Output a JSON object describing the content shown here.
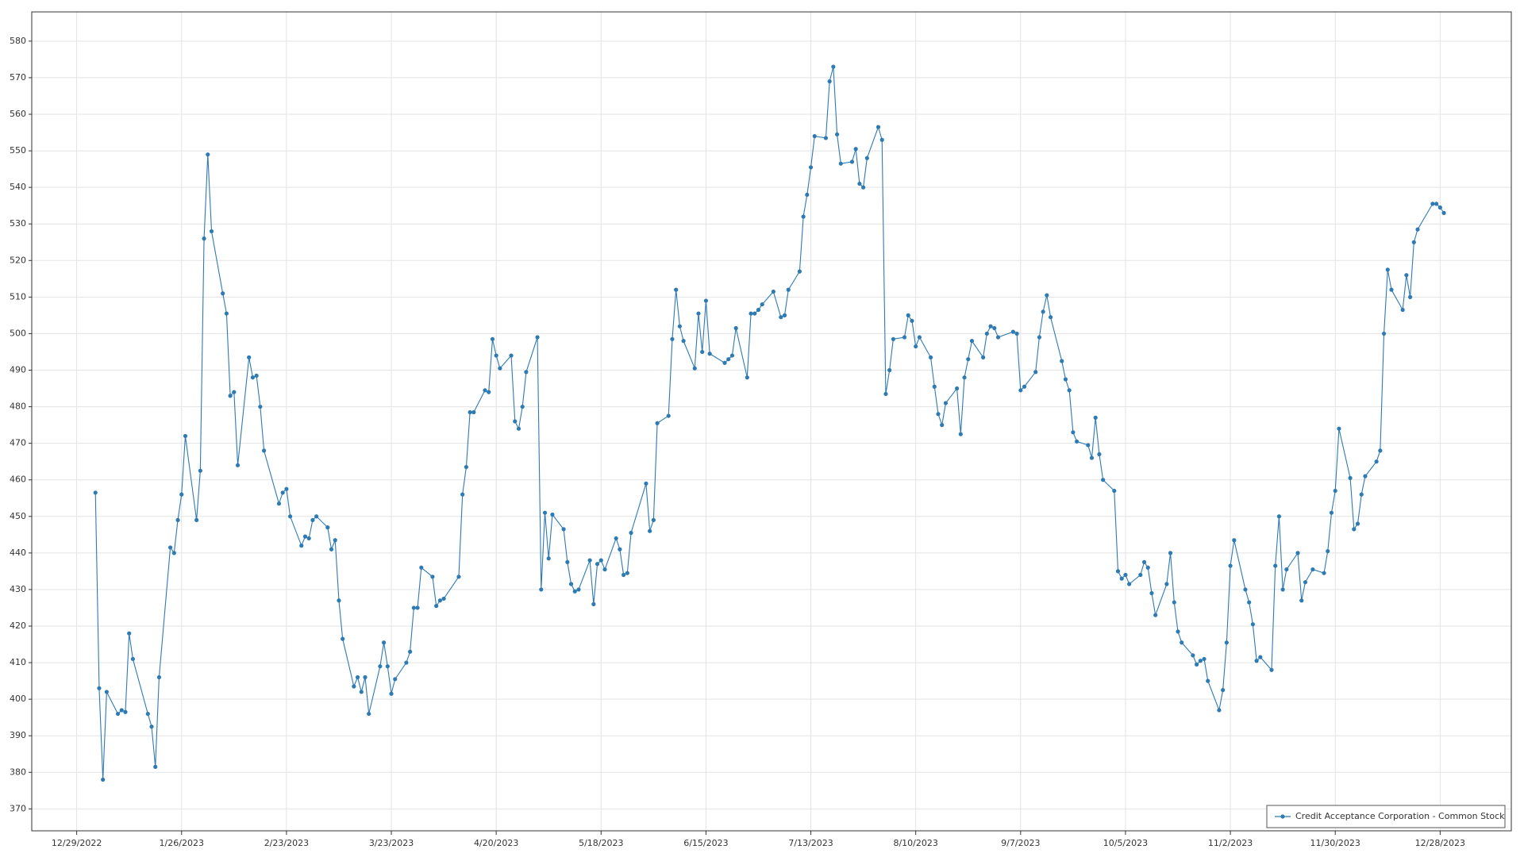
{
  "chart_data": {
    "type": "line",
    "x": [
      "1/3/2023",
      "1/4/2023",
      "1/5/2023",
      "1/6/2023",
      "1/9/2023",
      "1/10/2023",
      "1/11/2023",
      "1/12/2023",
      "1/13/2023",
      "1/17/2023",
      "1/18/2023",
      "1/19/2023",
      "1/20/2023",
      "1/23/2023",
      "1/24/2023",
      "1/25/2023",
      "1/26/2023",
      "1/27/2023",
      "1/30/2023",
      "1/31/2023",
      "2/1/2023",
      "2/2/2023",
      "2/3/2023",
      "2/6/2023",
      "2/7/2023",
      "2/8/2023",
      "2/9/2023",
      "2/10/2023",
      "2/13/2023",
      "2/14/2023",
      "2/15/2023",
      "2/16/2023",
      "2/17/2023",
      "2/21/2023",
      "2/22/2023",
      "2/23/2023",
      "2/24/2023",
      "2/27/2023",
      "2/28/2023",
      "3/1/2023",
      "3/2/2023",
      "3/3/2023",
      "3/6/2023",
      "3/7/2023",
      "3/8/2023",
      "3/9/2023",
      "3/10/2023",
      "3/13/2023",
      "3/14/2023",
      "3/15/2023",
      "3/16/2023",
      "3/17/2023",
      "3/20/2023",
      "3/21/2023",
      "3/22/2023",
      "3/23/2023",
      "3/24/2023",
      "3/27/2023",
      "3/28/2023",
      "3/29/2023",
      "3/30/2023",
      "3/31/2023",
      "4/3/2023",
      "4/4/2023",
      "4/5/2023",
      "4/6/2023",
      "4/10/2023",
      "4/11/2023",
      "4/12/2023",
      "4/13/2023",
      "4/14/2023",
      "4/17/2023",
      "4/18/2023",
      "4/19/2023",
      "4/20/2023",
      "4/21/2023",
      "4/24/2023",
      "4/25/2023",
      "4/26/2023",
      "4/27/2023",
      "4/28/2023",
      "5/1/2023",
      "5/2/2023",
      "5/3/2023",
      "5/4/2023",
      "5/5/2023",
      "5/8/2023",
      "5/9/2023",
      "5/10/2023",
      "5/11/2023",
      "5/12/2023",
      "5/15/2023",
      "5/16/2023",
      "5/17/2023",
      "5/18/2023",
      "5/19/2023",
      "5/22/2023",
      "5/23/2023",
      "5/24/2023",
      "5/25/2023",
      "5/26/2023",
      "5/30/2023",
      "5/31/2023",
      "6/1/2023",
      "6/2/2023",
      "6/5/2023",
      "6/6/2023",
      "6/7/2023",
      "6/8/2023",
      "6/9/2023",
      "6/12/2023",
      "6/13/2023",
      "6/14/2023",
      "6/15/2023",
      "6/16/2023",
      "6/20/2023",
      "6/21/2023",
      "6/22/2023",
      "6/23/2023",
      "6/26/2023",
      "6/27/2023",
      "6/28/2023",
      "6/29/2023",
      "6/30/2023",
      "7/3/2023",
      "7/5/2023",
      "7/6/2023",
      "7/7/2023",
      "7/10/2023",
      "7/11/2023",
      "7/12/2023",
      "7/13/2023",
      "7/14/2023",
      "7/17/2023",
      "7/18/2023",
      "7/19/2023",
      "7/20/2023",
      "7/21/2023",
      "7/24/2023",
      "7/25/2023",
      "7/26/2023",
      "7/27/2023",
      "7/28/2023",
      "7/31/2023",
      "8/1/2023",
      "8/2/2023",
      "8/3/2023",
      "8/4/2023",
      "8/7/2023",
      "8/8/2023",
      "8/9/2023",
      "8/10/2023",
      "8/11/2023",
      "8/14/2023",
      "8/15/2023",
      "8/16/2023",
      "8/17/2023",
      "8/18/2023",
      "8/21/2023",
      "8/22/2023",
      "8/23/2023",
      "8/24/2023",
      "8/25/2023",
      "8/28/2023",
      "8/29/2023",
      "8/30/2023",
      "8/31/2023",
      "9/1/2023",
      "9/5/2023",
      "9/6/2023",
      "9/7/2023",
      "9/8/2023",
      "9/11/2023",
      "9/12/2023",
      "9/13/2023",
      "9/14/2023",
      "9/15/2023",
      "9/18/2023",
      "9/19/2023",
      "9/20/2023",
      "9/21/2023",
      "9/22/2023",
      "9/25/2023",
      "9/26/2023",
      "9/27/2023",
      "9/28/2023",
      "9/29/2023",
      "10/2/2023",
      "10/3/2023",
      "10/4/2023",
      "10/5/2023",
      "10/6/2023",
      "10/9/2023",
      "10/10/2023",
      "10/11/2023",
      "10/12/2023",
      "10/13/2023",
      "10/16/2023",
      "10/17/2023",
      "10/18/2023",
      "10/19/2023",
      "10/20/2023",
      "10/23/2023",
      "10/24/2023",
      "10/25/2023",
      "10/26/2023",
      "10/27/2023",
      "10/30/2023",
      "10/31/2023",
      "11/1/2023",
      "11/2/2023",
      "11/3/2023",
      "11/6/2023",
      "11/7/2023",
      "11/8/2023",
      "11/9/2023",
      "11/10/2023",
      "11/13/2023",
      "11/14/2023",
      "11/15/2023",
      "11/16/2023",
      "11/17/2023",
      "11/20/2023",
      "11/21/2023",
      "11/22/2023",
      "11/24/2023",
      "11/27/2023",
      "11/28/2023",
      "11/29/2023",
      "11/30/2023",
      "12/1/2023",
      "12/4/2023",
      "12/5/2023",
      "12/6/2023",
      "12/7/2023",
      "12/8/2023",
      "12/11/2023",
      "12/12/2023",
      "12/13/2023",
      "12/14/2023",
      "12/15/2023",
      "12/18/2023",
      "12/19/2023",
      "12/20/2023",
      "12/21/2023",
      "12/22/2023",
      "12/26/2023",
      "12/27/2023",
      "12/28/2023",
      "12/29/2023"
    ],
    "series": [
      {
        "name": "Credit Acceptance Corporation - Common Stock",
        "color": "#2e7ab3",
        "values": [
          456.5,
          403,
          378,
          402,
          396,
          397,
          396.5,
          418,
          411,
          396,
          392.5,
          381.5,
          406,
          441.5,
          440,
          449,
          456,
          472,
          449,
          462.5,
          526,
          549,
          528,
          511,
          505.5,
          483,
          484,
          464,
          493.5,
          488,
          488.5,
          480,
          468,
          453.5,
          456.5,
          457.5,
          450,
          442,
          444.5,
          444,
          449,
          450,
          447,
          441,
          443.5,
          427,
          416.5,
          403.5,
          406,
          402,
          406,
          396,
          409,
          415.5,
          409,
          401.5,
          405.5,
          410,
          413,
          425,
          425,
          436,
          433.5,
          425.5,
          427,
          427.5,
          433.5,
          456,
          463.5,
          478.5,
          478.5,
          484.5,
          484,
          498.5,
          494,
          490.5,
          494,
          476,
          474,
          480,
          489.5,
          499,
          430,
          451,
          438.5,
          450.5,
          446.5,
          437.5,
          431.5,
          429.5,
          430,
          438,
          426,
          437,
          438,
          435.5,
          444,
          441,
          434,
          434.5,
          445.5,
          459,
          446,
          449,
          475.5,
          477.5,
          498.5,
          512,
          502,
          498,
          490.5,
          505.5,
          495,
          509,
          494.5,
          492,
          493,
          494,
          501.5,
          488,
          505.5,
          505.5,
          506.5,
          508,
          511.5,
          504.5,
          505,
          512,
          517,
          532,
          538,
          545.5,
          554,
          553.5,
          569,
          573,
          554.5,
          546.5,
          547,
          550.5,
          541,
          540,
          548,
          556.5,
          553,
          483.5,
          490,
          498.5,
          499,
          505,
          503.5,
          496.5,
          499,
          493.5,
          485.5,
          478,
          475,
          481,
          485,
          472.5,
          488,
          493,
          498,
          493.5,
          500,
          502,
          501.5,
          499,
          500.5,
          500,
          484.5,
          485.5,
          489.5,
          499,
          506,
          510.5,
          504.5,
          492.5,
          487.5,
          484.5,
          473,
          470.5,
          469.5,
          466,
          477,
          467,
          460,
          457,
          435,
          433,
          434,
          431.5,
          434,
          437.5,
          436,
          429,
          423,
          431.5,
          440,
          426.5,
          418.5,
          415.5,
          412,
          409.5,
          410.5,
          411,
          405,
          397,
          402.5,
          415.5,
          436.5,
          443.5,
          430,
          426.5,
          420.5,
          410.5,
          411.5,
          408,
          436.5,
          450,
          430,
          435.5,
          440,
          427,
          432,
          435.5,
          434.5,
          440.5,
          451,
          457,
          474,
          460.5,
          446.5,
          448,
          456,
          461,
          465,
          468,
          500,
          517.5,
          512,
          506.5,
          516,
          510,
          525,
          528.5,
          535.5,
          535.5,
          534.5,
          533
        ]
      }
    ],
    "xlim": [
      "12/17/2022",
      "1/16/2024"
    ],
    "xticks": [
      "12/29/2022",
      "1/26/2023",
      "2/23/2023",
      "3/23/2023",
      "4/20/2023",
      "5/18/2023",
      "6/15/2023",
      "7/13/2023",
      "8/10/2023",
      "9/7/2023",
      "10/5/2023",
      "11/2/2023",
      "11/30/2023",
      "12/28/2023"
    ],
    "ylim": [
      364,
      588
    ],
    "yticks": [
      370,
      380,
      390,
      400,
      410,
      420,
      430,
      440,
      450,
      460,
      470,
      480,
      490,
      500,
      510,
      520,
      530,
      540,
      550,
      560,
      570,
      580
    ],
    "grid": true,
    "legend": "lower right",
    "markers": true
  }
}
